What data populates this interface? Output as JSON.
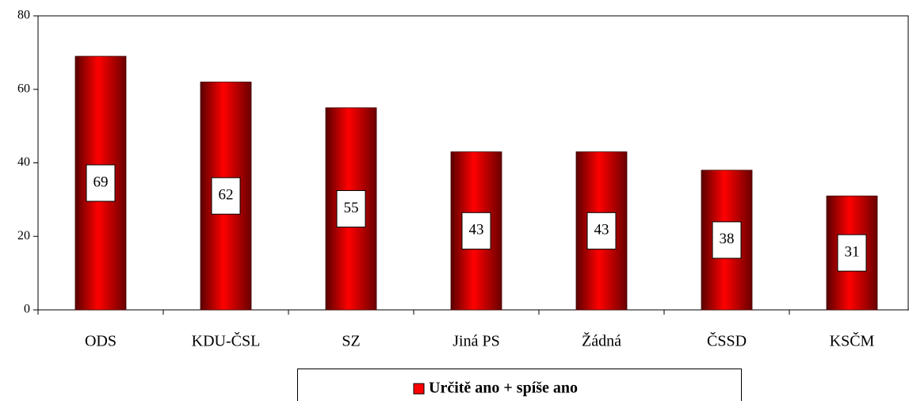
{
  "chart_data": {
    "type": "bar",
    "categories": [
      "ODS",
      "KDU-ČSL",
      "SZ",
      "Jiná PS",
      "Žádná",
      "ČSSD",
      "KSČM"
    ],
    "series": [
      {
        "name": "Určitě ano + spíše ano",
        "color": "#ff0000",
        "values": [
          69,
          62,
          55,
          43,
          43,
          38,
          31
        ]
      }
    ],
    "ylim": [
      0,
      80
    ],
    "yticks": [
      0,
      20,
      40,
      60,
      80
    ],
    "legend": "bottom",
    "data_labels": true
  }
}
